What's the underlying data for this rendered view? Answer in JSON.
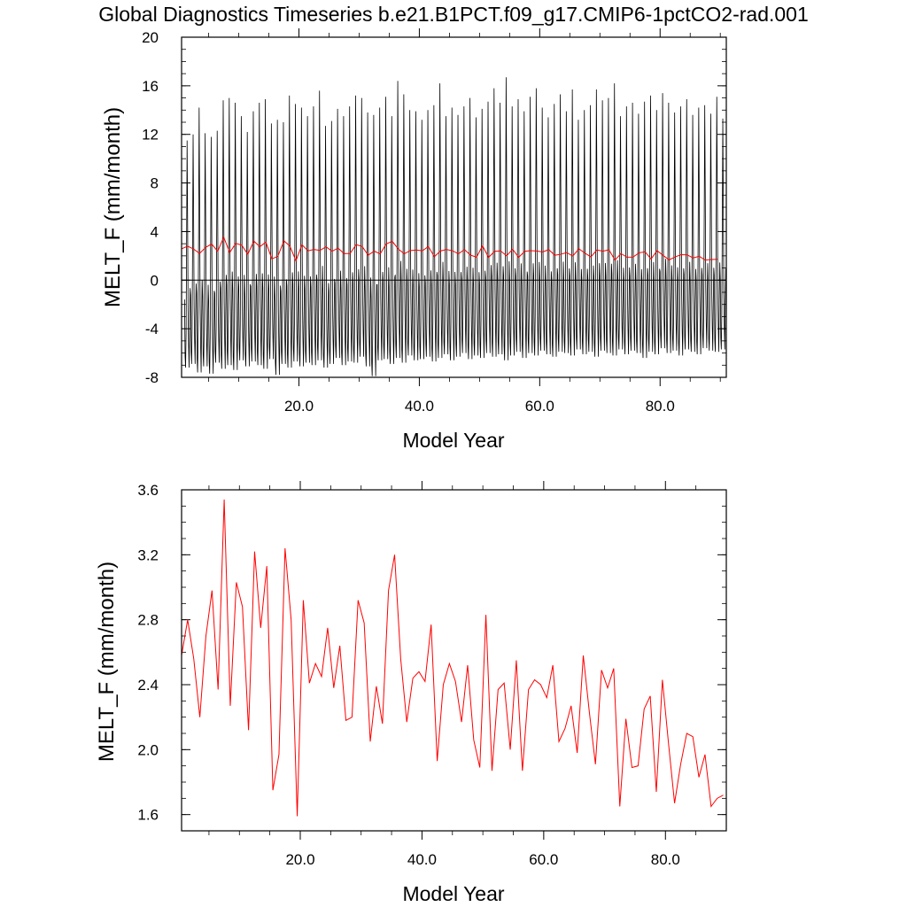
{
  "title": "Global Diagnostics Timeseries b.e21.B1PCT.f09_g17.CMIP6-1pctCO2-rad.001",
  "chart_data": [
    {
      "type": "line",
      "panel": "top",
      "ylabel": "MELT_F (mm/month)",
      "xlabel": "Model Year",
      "xlim": [
        0.5,
        91
      ],
      "ylim": [
        -8,
        20
      ],
      "xticks": [
        20,
        40,
        60,
        80
      ],
      "xtick_labels": [
        "20.0",
        "40.0",
        "60.0",
        "80.0"
      ],
      "yticks": [
        -8,
        -4,
        0,
        4,
        8,
        12,
        16,
        20
      ],
      "ytick_labels": [
        "-8",
        "-4",
        "0",
        "4",
        "8",
        "12",
        "16",
        "20"
      ],
      "zero_line": true,
      "monthly_series": {
        "name": "",
        "color": "#000000",
        "note": "monthly MELT_F anomaly values (mm/month), 12 per model year, years 1-90",
        "annual_max": [
          11.5,
          12.0,
          14.2,
          12.1,
          11.8,
          12.3,
          14.8,
          15.0,
          14.6,
          13.5,
          12.2,
          13.9,
          14.6,
          14.9,
          12.9,
          13.2,
          13.0,
          15.2,
          14.5,
          14.2,
          13.5,
          14.3,
          15.6,
          12.7,
          13.1,
          14.1,
          13.5,
          14.3,
          15.2,
          15.0,
          13.8,
          13.6,
          14.2,
          15.1,
          13.5,
          16.4,
          15.3,
          14.0,
          13.9,
          13.2,
          14.0,
          14.4,
          16.2,
          13.5,
          14.2,
          13.6,
          14.3,
          15.0,
          13.4,
          14.1,
          14.7,
          15.8,
          14.6,
          16.7,
          14.3,
          14.9,
          13.9,
          15.1,
          15.8,
          14.2,
          13.4,
          14.5,
          15.3,
          13.9,
          15.7,
          13.2,
          14.0,
          14.4,
          15.7,
          14.8,
          15.0,
          16.2,
          13.5,
          14.3,
          14.6,
          13.7,
          14.7,
          15.2,
          14.0,
          15.4,
          14.6,
          13.8,
          14.3,
          14.9,
          13.6,
          14.2,
          14.4,
          13.7,
          15.1,
          13.3
        ],
        "annual_min": [
          -7.2,
          -6.9,
          -7.6,
          -7.1,
          -7.7,
          -6.8,
          -7.3,
          -7.0,
          -7.4,
          -6.6,
          -7.1,
          -6.7,
          -7.0,
          -7.3,
          -6.5,
          -7.8,
          -6.9,
          -7.2,
          -6.7,
          -7.1,
          -6.8,
          -7.0,
          -6.6,
          -7.2,
          -6.9,
          -6.4,
          -7.0,
          -6.7,
          -6.8,
          -6.3,
          -7.1,
          -7.9,
          -6.6,
          -6.5,
          -6.9,
          -6.4,
          -6.8,
          -6.2,
          -6.6,
          -6.5,
          -6.3,
          -6.7,
          -6.4,
          -6.1,
          -6.6,
          -6.3,
          -6.0,
          -6.5,
          -6.2,
          -6.4,
          -6.0,
          -6.3,
          -6.1,
          -6.6,
          -6.2,
          -5.9,
          -6.4,
          -6.0,
          -6.2,
          -5.8,
          -6.1,
          -6.3,
          -5.9,
          -6.0,
          -6.2,
          -5.7,
          -6.1,
          -5.9,
          -6.3,
          -5.8,
          -6.0,
          -6.2,
          -5.7,
          -6.1,
          -5.8,
          -6.0,
          -6.4,
          -5.9,
          -6.1,
          -5.6,
          -6.0,
          -5.8,
          -6.2,
          -5.7,
          -5.9,
          -6.1,
          -5.6,
          -5.8,
          -5.9,
          -5.7
        ]
      },
      "annual_series": {
        "name": "",
        "color": "#ff0000",
        "note": "annual mean, same values as bottom panel"
      }
    },
    {
      "type": "line",
      "panel": "bottom",
      "ylabel": "MELT_F (mm/month)",
      "xlabel": "Model Year",
      "xlim": [
        0.5,
        90
      ],
      "ylim": [
        1.5,
        3.6
      ],
      "xticks": [
        20,
        40,
        60,
        80
      ],
      "xtick_labels": [
        "20.0",
        "40.0",
        "60.0",
        "80.0"
      ],
      "yticks": [
        1.6,
        2.0,
        2.4,
        2.8,
        3.2,
        3.6
      ],
      "ytick_labels": [
        "1.6",
        "2.0",
        "2.4",
        "2.8",
        "3.2",
        "3.6"
      ],
      "series": [
        {
          "name": "",
          "color": "#ff0000",
          "x": [
            0.5,
            1.5,
            2.5,
            3.5,
            4.5,
            5.5,
            6.5,
            7.5,
            8.5,
            9.5,
            10.5,
            11.5,
            12.5,
            13.5,
            14.5,
            15.5,
            16.5,
            17.5,
            18.5,
            19.5,
            20.5,
            21.5,
            22.5,
            23.5,
            24.5,
            25.5,
            26.5,
            27.5,
            28.5,
            29.5,
            30.5,
            31.5,
            32.5,
            33.5,
            34.5,
            35.5,
            36.5,
            37.5,
            38.5,
            39.5,
            40.5,
            41.5,
            42.5,
            43.5,
            44.5,
            45.5,
            46.5,
            47.5,
            48.5,
            49.5,
            50.5,
            51.5,
            52.5,
            53.5,
            54.5,
            55.5,
            56.5,
            57.5,
            58.5,
            59.5,
            60.5,
            61.5,
            62.5,
            63.5,
            64.5,
            65.5,
            66.5,
            67.5,
            68.5,
            69.5,
            70.5,
            71.5,
            72.5,
            73.5,
            74.5,
            75.5,
            76.5,
            77.5,
            78.5,
            79.5,
            80.5,
            81.5,
            82.5,
            83.5,
            84.5,
            85.5,
            86.5,
            87.5,
            88.5,
            89.5
          ],
          "values": [
            2.58,
            2.8,
            2.56,
            2.2,
            2.7,
            2.98,
            2.37,
            3.54,
            2.27,
            3.03,
            2.88,
            2.12,
            3.22,
            2.75,
            3.13,
            1.75,
            1.97,
            3.24,
            2.8,
            1.59,
            2.92,
            2.41,
            2.53,
            2.45,
            2.75,
            2.38,
            2.64,
            2.18,
            2.2,
            2.92,
            2.78,
            2.05,
            2.39,
            2.16,
            2.98,
            3.2,
            2.56,
            2.17,
            2.44,
            2.48,
            2.42,
            2.77,
            1.93,
            2.4,
            2.53,
            2.42,
            2.17,
            2.52,
            2.06,
            1.89,
            2.83,
            1.87,
            2.37,
            2.41,
            2.0,
            2.55,
            1.87,
            2.37,
            2.43,
            2.4,
            2.32,
            2.52,
            2.05,
            2.13,
            2.27,
            1.98,
            2.58,
            2.23,
            1.91,
            2.49,
            2.38,
            2.5,
            1.65,
            2.19,
            1.89,
            1.9,
            2.25,
            2.33,
            1.74,
            2.43,
            2.04,
            1.67,
            1.91,
            2.1,
            2.08,
            1.83,
            1.97,
            1.65,
            1.7,
            1.72
          ]
        }
      ]
    }
  ]
}
